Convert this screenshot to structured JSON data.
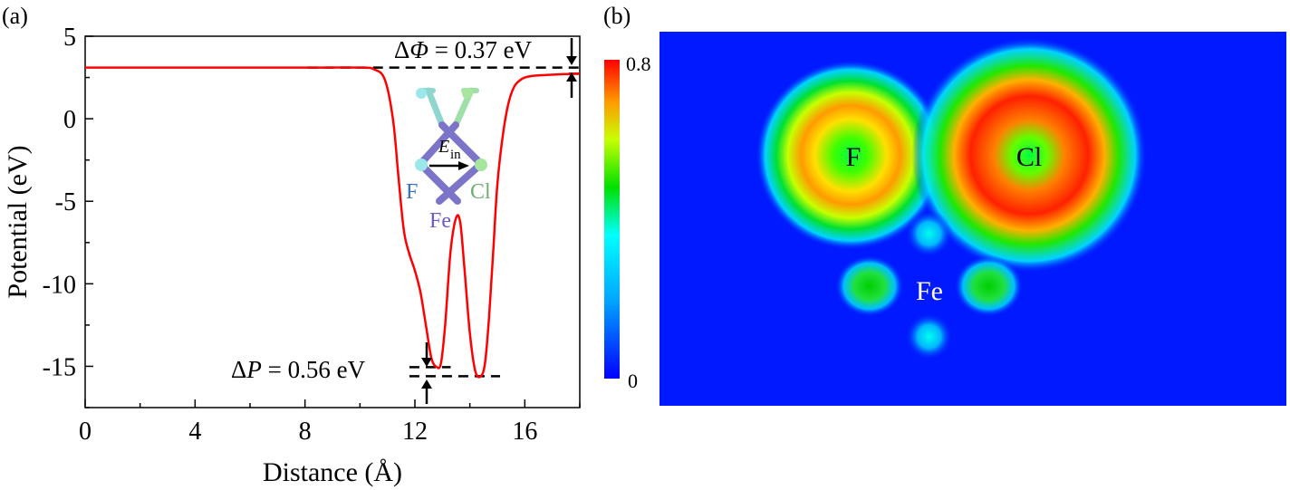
{
  "panel_a": {
    "label": "(a)",
    "annot_work_function": {
      "prefix": "Δ",
      "symbol": "Φ",
      "suffix": " = 0.37 eV"
    },
    "annot_potential": {
      "prefix": "Δ",
      "symbol": "P",
      "suffix": " = 0.56 eV"
    },
    "inset": {
      "F": "F",
      "Cl": "Cl",
      "Fe": "Fe",
      "field_label": "E",
      "field_sub": "in"
    }
  },
  "panel_b": {
    "label": "(b)",
    "labels": {
      "F": "F",
      "Cl": "Cl",
      "Fe": "Fe"
    },
    "colorbar": {
      "max_label": "0.8",
      "min_label": "0"
    }
  },
  "colors": {
    "curve": "#ff0000",
    "heat_bg": "#0019ff",
    "fe_label": "#6a5acd",
    "f_label": "#3a6fd0",
    "cl_label": "#6fae6f"
  },
  "chart_data": [
    {
      "type": "line",
      "title": "",
      "xlabel": "Distance (Å)",
      "ylabel": "Potential (eV)",
      "xlim": [
        0,
        18
      ],
      "ylim": [
        -17.5,
        5
      ],
      "xticks": [
        0,
        4,
        8,
        12,
        16
      ],
      "yticks": [
        5,
        0,
        -5,
        -10,
        -15
      ],
      "ytick_labels": [
        "5",
        "0",
        "-5",
        "-10",
        "-15"
      ],
      "series": [
        {
          "x": [
            0,
            8,
            10.0,
            10.5,
            10.9,
            11.2,
            11.4,
            11.6,
            11.8,
            12.0,
            12.2,
            12.4,
            12.6,
            12.8,
            12.95,
            13.1,
            13.3,
            13.5,
            13.65,
            13.8,
            14.0,
            14.2,
            14.4,
            14.55,
            14.7,
            14.85,
            15.0,
            15.2,
            15.4,
            15.6,
            15.8,
            16.0,
            16.3,
            16.8,
            17.4,
            18.0
          ],
          "y": [
            3.1,
            3.1,
            3.1,
            3.0,
            2.4,
            0,
            -3.5,
            -6.8,
            -8.2,
            -9.2,
            -10.5,
            -12.5,
            -14.5,
            -15.05,
            -14.8,
            -12.5,
            -8.0,
            -6.0,
            -6.3,
            -9.0,
            -13.0,
            -15.3,
            -15.6,
            -14.8,
            -12.0,
            -8.0,
            -4.0,
            -1.0,
            0.9,
            1.9,
            2.3,
            2.5,
            2.6,
            2.65,
            2.7,
            2.73
          ]
        }
      ],
      "ref_lines": [
        {
          "y": 3.1,
          "x_from": 8.1,
          "x_to": 18
        },
        {
          "y": 2.73,
          "x_from": 17.6,
          "x_to": 18
        },
        {
          "y": -15.05,
          "x_from": 11.8,
          "x_to": 13.3
        },
        {
          "y": -15.6,
          "x_from": 11.8,
          "x_to": 15.1
        }
      ]
    },
    {
      "type": "heatmap",
      "colorbar_range": [
        0,
        0.8
      ],
      "blobs": [
        {
          "label": "F",
          "cx": 0.305,
          "cy": 0.33,
          "peak": 0.7
        },
        {
          "label": "Cl",
          "cx": 0.59,
          "cy": 0.33,
          "peak": 0.8
        },
        {
          "label": "Fe-top",
          "cx": 0.43,
          "cy": 0.54,
          "peak": 0.35
        },
        {
          "label": "Fe-left",
          "cx": 0.335,
          "cy": 0.68,
          "peak": 0.5
        },
        {
          "label": "Fe-right",
          "cx": 0.525,
          "cy": 0.68,
          "peak": 0.5
        },
        {
          "label": "Fe-bottom",
          "cx": 0.43,
          "cy": 0.815,
          "peak": 0.35
        }
      ]
    }
  ]
}
